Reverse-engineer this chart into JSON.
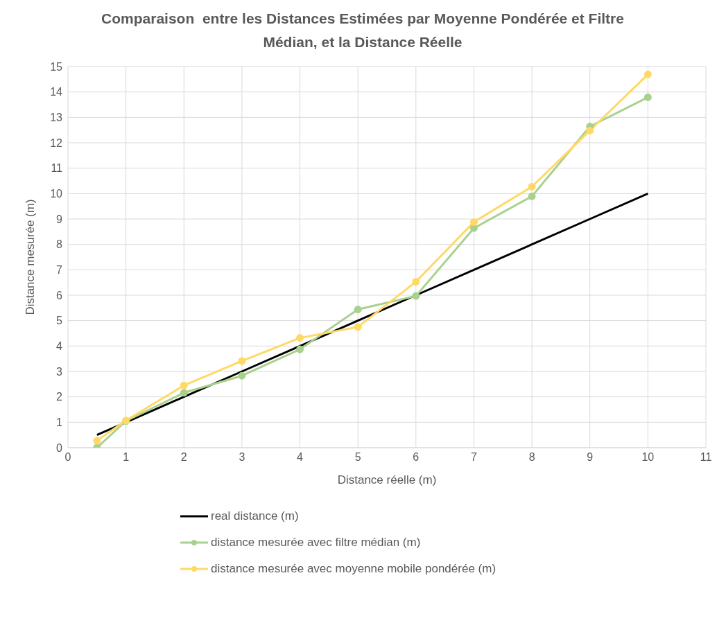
{
  "chart_data": {
    "type": "line",
    "title": "Comparaison  entre les Distances Estimées par Moyenne Pondérée et Filtre Médian, et la Distance Réelle",
    "xlabel": "Distance réelle (m)",
    "ylabel": "Distance mesurée (m)",
    "x": [
      0.5,
      1,
      2,
      3,
      4,
      5,
      6,
      7,
      8,
      9,
      10
    ],
    "series": [
      {
        "name": "real distance (m)",
        "color": "#000000",
        "marker": "none",
        "values": [
          0.5,
          1,
          2,
          3,
          4,
          5,
          6,
          7,
          8,
          9,
          10
        ]
      },
      {
        "name": "distance mesurée avec filtre médian (m)",
        "color": "#a9d18e",
        "marker": "circle",
        "values": [
          0,
          1.05,
          2.16,
          2.83,
          3.87,
          5.44,
          5.97,
          8.64,
          9.89,
          12.64,
          13.79
        ]
      },
      {
        "name": "distance mesurée avec moyenne mobile pondérée (m)",
        "color": "#ffd966",
        "marker": "circle",
        "values": [
          0.27,
          1.07,
          2.45,
          3.41,
          4.32,
          4.75,
          6.53,
          8.88,
          10.27,
          12.48,
          14.69
        ]
      }
    ],
    "xlim": [
      0,
      11
    ],
    "xticks": [
      0,
      1,
      2,
      3,
      4,
      5,
      6,
      7,
      8,
      9,
      10,
      11
    ],
    "ylim": [
      0,
      15
    ],
    "yticks": [
      0,
      1,
      2,
      3,
      4,
      5,
      6,
      7,
      8,
      9,
      10,
      11,
      12,
      13,
      14,
      15
    ],
    "grid": true,
    "legend": "bottom",
    "line_style": "solid"
  }
}
